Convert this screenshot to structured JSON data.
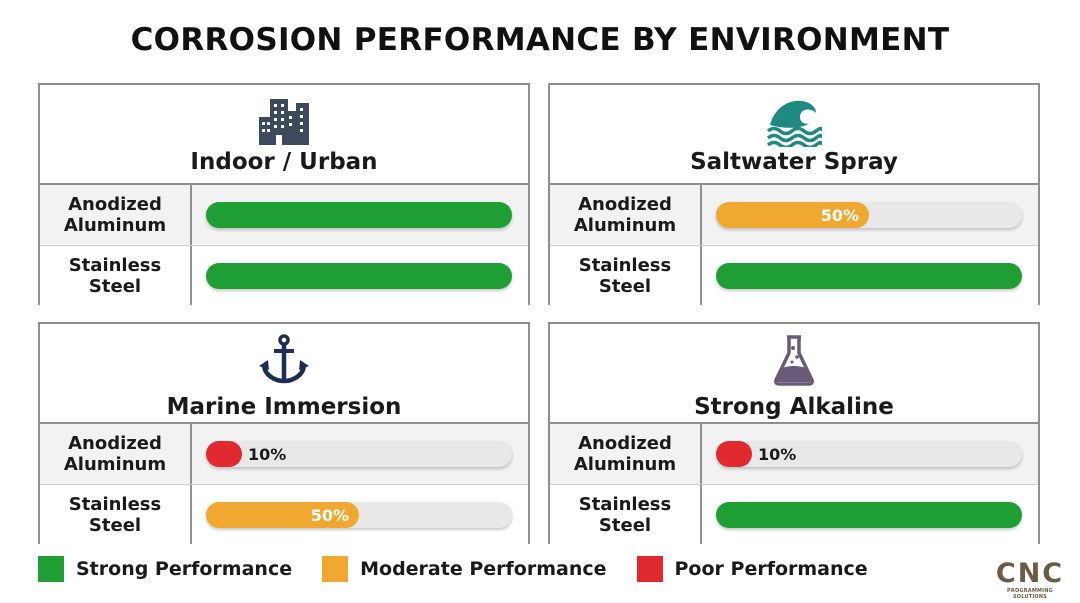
{
  "title": "CORROSION PERFORMANCE BY ENVIRONMENT",
  "colors": {
    "strong": "#1e9e33",
    "moderate": "#f0a830",
    "poor": "#e12a2f",
    "track": "#e8e8e8"
  },
  "chart_data": {
    "type": "bar",
    "title": "CORROSION PERFORMANCE BY ENVIRONMENT",
    "ylim": [
      0,
      100
    ],
    "legend_placement": "bottom-left",
    "panels": [
      {
        "name": "Indoor / Urban",
        "icon": "city-buildings-icon",
        "icon_color": "#3d4a5c",
        "bars": [
          {
            "label": "Anodized Aluminum",
            "value": 100,
            "rating": "strong",
            "value_label": ""
          },
          {
            "label": "Stainless Steel",
            "value": 100,
            "rating": "strong",
            "value_label": ""
          }
        ]
      },
      {
        "name": "Saltwater Spray",
        "icon": "wave-icon",
        "icon_color": "#1f8a80",
        "bars": [
          {
            "label": "Anodized Aluminum",
            "value": 50,
            "rating": "moderate",
            "value_label": "50%"
          },
          {
            "label": "Stainless Steel",
            "value": 100,
            "rating": "strong",
            "value_label": ""
          }
        ]
      },
      {
        "name": "Marine Immersion",
        "icon": "anchor-icon",
        "icon_color": "#1c2f52",
        "bars": [
          {
            "label": "Anodized Aluminum",
            "value": 10,
            "rating": "poor",
            "value_label": "10%"
          },
          {
            "label": "Stainless Steel",
            "value": 50,
            "rating": "moderate",
            "value_label": "50%"
          }
        ]
      },
      {
        "name": "Strong Alkaline",
        "icon": "flask-icon",
        "icon_color": "#6a5a7a",
        "bars": [
          {
            "label": "Anodized Aluminum",
            "value": 10,
            "rating": "poor",
            "value_label": "10%"
          },
          {
            "label": "Stainless Steel",
            "value": 100,
            "rating": "strong",
            "value_label": ""
          }
        ]
      }
    ],
    "legend": [
      {
        "rating": "strong",
        "label": "Strong Performance"
      },
      {
        "rating": "moderate",
        "label": "Moderate Performance"
      },
      {
        "rating": "poor",
        "label": "Poor Performance"
      }
    ]
  },
  "logo": {
    "main": "CNC",
    "sub": "PROGRAMMING SOLUTIONS"
  }
}
